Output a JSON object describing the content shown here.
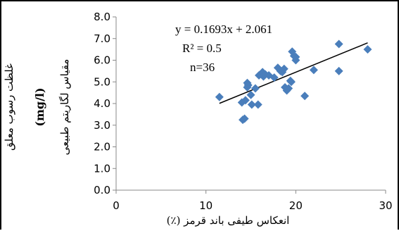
{
  "chart_data": {
    "type": "scatter",
    "xlim": [
      0,
      30
    ],
    "ylim": [
      0,
      8
    ],
    "x_ticks": [
      "0",
      "10",
      "20",
      "30"
    ],
    "y_ticks": [
      "0.0",
      "1.0",
      "2.0",
      "3.0",
      "4.0",
      "5.0",
      "6.0",
      "7.0",
      "8.0"
    ],
    "xlabel": "انعکاس طیفی باند قرمز (٪)",
    "ylabel_line1": "غلظت رسوب معلق",
    "ylabel_line2": "(mg/l)",
    "ylabel_line3": "مقیاس لگاریتم طبیعی",
    "grid": false,
    "marker_color": "#4a7ebb",
    "trendline": {
      "slope": 0.1693,
      "intercept": 2.061,
      "x_range": [
        11.5,
        28
      ],
      "equation": "y = 0.1693x + 2.061",
      "r_squared": "R² = 0.5",
      "n": "n=36"
    },
    "points": [
      {
        "x": 11.5,
        "y": 4.3
      },
      {
        "x": 14.0,
        "y": 4.05
      },
      {
        "x": 14.1,
        "y": 3.25
      },
      {
        "x": 14.3,
        "y": 3.3
      },
      {
        "x": 14.4,
        "y": 4.15
      },
      {
        "x": 14.6,
        "y": 4.95
      },
      {
        "x": 14.6,
        "y": 4.75
      },
      {
        "x": 14.7,
        "y": 4.85
      },
      {
        "x": 15.0,
        "y": 4.4
      },
      {
        "x": 15.1,
        "y": 3.95
      },
      {
        "x": 15.5,
        "y": 4.7
      },
      {
        "x": 15.8,
        "y": 3.95
      },
      {
        "x": 15.9,
        "y": 5.3
      },
      {
        "x": 16.3,
        "y": 5.45
      },
      {
        "x": 16.4,
        "y": 5.25
      },
      {
        "x": 16.6,
        "y": 5.35
      },
      {
        "x": 17.0,
        "y": 5.3
      },
      {
        "x": 18.0,
        "y": 5.65
      },
      {
        "x": 18.3,
        "y": 5.5
      },
      {
        "x": 18.5,
        "y": 5.45
      },
      {
        "x": 18.7,
        "y": 5.6
      },
      {
        "x": 18.8,
        "y": 4.75
      },
      {
        "x": 19.0,
        "y": 4.6
      },
      {
        "x": 19.2,
        "y": 4.7
      },
      {
        "x": 19.4,
        "y": 5.05
      },
      {
        "x": 19.6,
        "y": 6.4
      },
      {
        "x": 19.8,
        "y": 6.2
      },
      {
        "x": 20.0,
        "y": 6.0
      },
      {
        "x": 20.0,
        "y": 6.15
      },
      {
        "x": 19.5,
        "y": 5.0
      },
      {
        "x": 21.0,
        "y": 4.35
      },
      {
        "x": 22.0,
        "y": 5.55
      },
      {
        "x": 24.8,
        "y": 6.75
      },
      {
        "x": 24.8,
        "y": 5.5
      },
      {
        "x": 28.0,
        "y": 6.5
      },
      {
        "x": 17.6,
        "y": 5.2
      }
    ]
  }
}
